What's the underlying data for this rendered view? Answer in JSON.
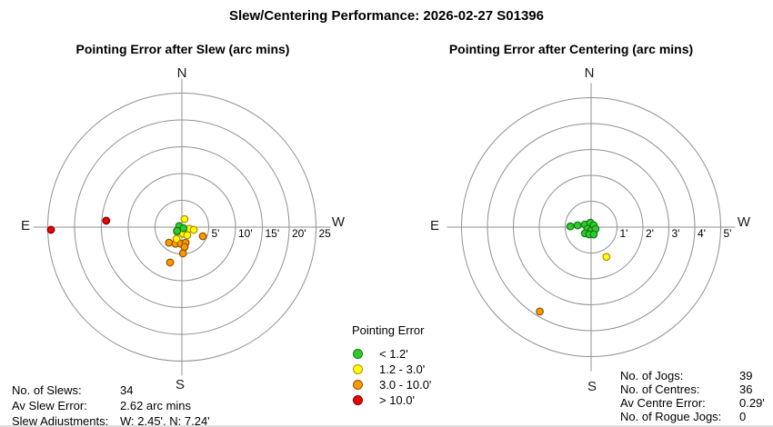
{
  "page_title": "Slew/Centering Performance: 2026-02-27 S01396",
  "palette": {
    "green": {
      "fill": "#2ecc2e",
      "stroke": "#117711"
    },
    "yellow": {
      "fill": "#ffff00",
      "stroke": "#b8860b"
    },
    "orange": {
      "fill": "#ff9900",
      "stroke": "#8a5500"
    },
    "red": {
      "fill": "#ee0000",
      "stroke": "#7a0000"
    }
  },
  "legend": {
    "title": "Pointing Error",
    "items": [
      {
        "band": "green",
        "label": "< 1.2'"
      },
      {
        "band": "yellow",
        "label": "1.2 - 3.0'"
      },
      {
        "band": "orange",
        "label": "3.0 - 10.0'"
      },
      {
        "band": "red",
        "label": "> 10.0'"
      }
    ]
  },
  "chart_data": [
    {
      "type": "scatter",
      "projection": "polar",
      "title": "Pointing Error after Slew (arc mins)",
      "units": "arc mins",
      "compass": {
        "top": "N",
        "bottom": "S",
        "left": "E",
        "right": "W"
      },
      "rings_arcmin": [
        5,
        10,
        15,
        20,
        25
      ],
      "ring_labels": [
        "5'",
        "10'",
        "15'",
        "20'",
        "25"
      ],
      "points": [
        {
          "band": "red",
          "ew": -24.4,
          "ns": -0.5
        },
        {
          "band": "red",
          "ew": -14.1,
          "ns": 1.2
        },
        {
          "band": "orange",
          "ew": 3.9,
          "ns": -1.7
        },
        {
          "band": "orange",
          "ew": -2.4,
          "ns": -2.9
        },
        {
          "band": "orange",
          "ew": -1.2,
          "ns": -3.1
        },
        {
          "band": "orange",
          "ew": -0.2,
          "ns": -3.1
        },
        {
          "band": "orange",
          "ew": 0.7,
          "ns": -2.9
        },
        {
          "band": "orange",
          "ew": 0.5,
          "ns": -3.7
        },
        {
          "band": "orange",
          "ew": 0.2,
          "ns": -4.9
        },
        {
          "band": "orange",
          "ew": -2.2,
          "ns": -6.6
        },
        {
          "band": "yellow",
          "ew": 0.5,
          "ns": 1.5
        },
        {
          "band": "yellow",
          "ew": 1.4,
          "ns": -0.3
        },
        {
          "band": "yellow",
          "ew": 2.2,
          "ns": -0.5
        },
        {
          "band": "yellow",
          "ew": -0.9,
          "ns": -0.9
        },
        {
          "band": "yellow",
          "ew": 0.2,
          "ns": -1.2
        },
        {
          "band": "yellow",
          "ew": 1.0,
          "ns": -1.5
        },
        {
          "band": "yellow",
          "ew": -1.0,
          "ns": -2.2
        },
        {
          "band": "green",
          "ew": -0.5,
          "ns": 0.2
        },
        {
          "band": "green",
          "ew": 0.3,
          "ns": -0.2
        },
        {
          "band": "green",
          "ew": -0.9,
          "ns": -0.7
        }
      ]
    },
    {
      "type": "scatter",
      "projection": "polar",
      "title": "Pointing Error after Centering (arc mins)",
      "units": "arc mins",
      "compass": {
        "top": "N",
        "bottom": "S",
        "left": "E",
        "right": "W"
      },
      "rings_arcmin": [
        1,
        2,
        3,
        4,
        5
      ],
      "ring_labels": [
        "1'",
        "2'",
        "3'",
        "4'",
        "5'"
      ],
      "points": [
        {
          "band": "orange",
          "ew": -1.98,
          "ns": -3.26
        },
        {
          "band": "yellow",
          "ew": 0.59,
          "ns": -1.15
        },
        {
          "band": "green",
          "ew": -0.8,
          "ns": 0.03
        },
        {
          "band": "green",
          "ew": -0.52,
          "ns": 0.07
        },
        {
          "band": "green",
          "ew": -0.24,
          "ns": 0.1
        },
        {
          "band": "green",
          "ew": -0.03,
          "ns": 0.17
        },
        {
          "band": "green",
          "ew": 0.1,
          "ns": 0.07
        },
        {
          "band": "green",
          "ew": -0.14,
          "ns": -0.07
        },
        {
          "band": "green",
          "ew": 0.0,
          "ns": -0.14
        },
        {
          "band": "green",
          "ew": 0.17,
          "ns": -0.07
        },
        {
          "band": "green",
          "ew": -0.24,
          "ns": -0.24
        },
        {
          "band": "green",
          "ew": -0.07,
          "ns": -0.28
        },
        {
          "band": "green",
          "ew": 0.1,
          "ns": -0.28
        }
      ]
    }
  ],
  "stats_left": {
    "rows": [
      {
        "label": "No. of Slews:",
        "value": "34"
      },
      {
        "label": "Av Slew Error:",
        "value": "2.62 arc mins"
      },
      {
        "label": "Slew Adjustments:",
        "value": "W: 2.45', N: 7.24'"
      }
    ]
  },
  "stats_right": {
    "rows": [
      {
        "label": "No. of Jogs:",
        "value": "39"
      },
      {
        "label": "No. of Centres:",
        "value": "36"
      },
      {
        "label": "Av Centre Error:",
        "value": "0.29'"
      },
      {
        "label": "No. of Rogue Jogs:",
        "value": "0"
      }
    ]
  }
}
